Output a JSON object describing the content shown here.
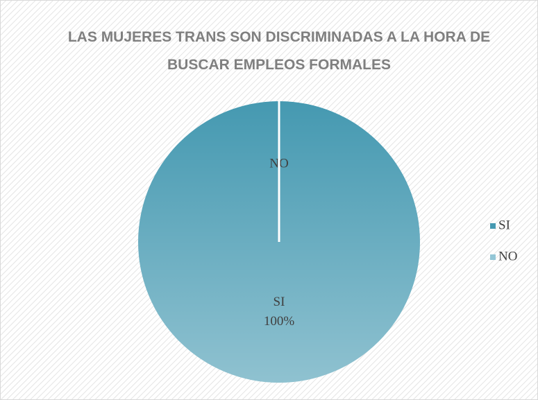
{
  "chart_data": {
    "type": "pie",
    "title": "LAS MUJERES TRANS SON DISCRIMINADAS A LA HORA DE BUSCAR EMPLEOS FORMALES",
    "categories": [
      "SI",
      "NO"
    ],
    "values": [
      100,
      0
    ],
    "value_labels": [
      "100%",
      null
    ],
    "colors": [
      "#4599b1",
      "#93c6d6"
    ],
    "legend": "right"
  }
}
